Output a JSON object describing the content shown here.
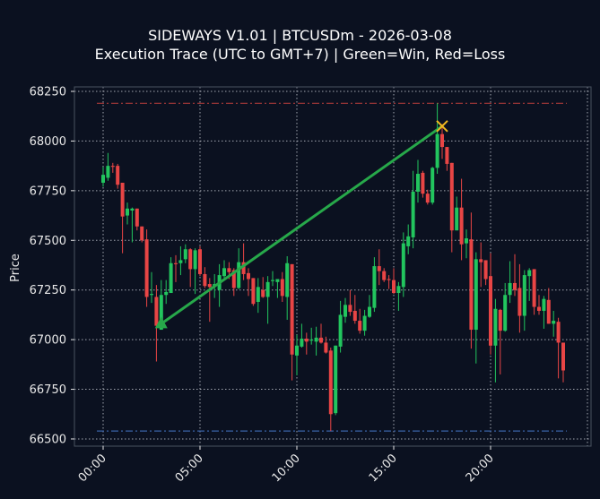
{
  "title": "SIDEWAYS V1.01 | BTCUSDm - 2026-03-08",
  "subtitle": "Execution Trace (UTC to GMT+7) | Green=Win, Red=Loss",
  "chart_data": {
    "type": "candlestick",
    "title": "SIDEWAYS V1.01 | BTCUSDm - 2026-03-08",
    "subtitle": "Execution Trace (UTC to GMT+7) | Green=Win, Red=Loss",
    "xlabel": "",
    "ylabel": "Price",
    "ylim": [
      66450,
      68270
    ],
    "yticks": [
      68250,
      68000,
      67750,
      67500,
      67250,
      67000,
      66750,
      66500
    ],
    "xticks": [
      "00:00",
      "05:00",
      "10:00",
      "15:00",
      "20:00"
    ],
    "grid": true,
    "colors": {
      "background": "#0b1120",
      "up": "#22c55e",
      "down": "#e84545",
      "trade_win": "#27a84a",
      "exit_marker": "#f0b820",
      "day_high_line": "#a83a3a",
      "day_low_line": "#3a62a8"
    },
    "day_high": 68190,
    "day_low": 66540,
    "trade": {
      "result": "win",
      "entry_time": "03:00",
      "entry_price": 67080,
      "exit_time": "17:30",
      "exit_price": 68075,
      "direction": "buy"
    },
    "columns": [
      "time",
      "open",
      "high",
      "low",
      "close"
    ],
    "candles": [
      [
        "00:00",
        67790,
        67870,
        67770,
        67830
      ],
      [
        "00:15",
        67815,
        67940,
        67800,
        67875
      ],
      [
        "00:30",
        67875,
        67890,
        67840,
        67870
      ],
      [
        "00:45",
        67875,
        67885,
        67760,
        67780
      ],
      [
        "01:00",
        67790,
        67790,
        67435,
        67620
      ],
      [
        "01:15",
        67625,
        67690,
        67580,
        67660
      ],
      [
        "01:30",
        67650,
        67665,
        67490,
        67660
      ],
      [
        "01:45",
        67660,
        67660,
        67550,
        67570
      ],
      [
        "02:00",
        67570,
        67570,
        67490,
        67500
      ],
      [
        "02:15",
        67505,
        67555,
        67165,
        67215
      ],
      [
        "02:30",
        67225,
        67340,
        67185,
        67230
      ],
      [
        "02:45",
        67215,
        67275,
        66890,
        67070
      ],
      [
        "03:00",
        67050,
        67300,
        67050,
        67225
      ],
      [
        "03:15",
        67225,
        67300,
        67180,
        67240
      ],
      [
        "03:30",
        67235,
        67415,
        67235,
        67385
      ],
      [
        "03:45",
        67385,
        67425,
        67290,
        67380
      ],
      [
        "04:00",
        67385,
        67470,
        67325,
        67400
      ],
      [
        "04:15",
        67405,
        67480,
        67385,
        67455
      ],
      [
        "04:30",
        67455,
        67460,
        67265,
        67355
      ],
      [
        "04:45",
        67355,
        67460,
        67230,
        67450
      ],
      [
        "05:00",
        67455,
        67470,
        67320,
        67330
      ],
      [
        "05:15",
        67330,
        67365,
        67260,
        67270
      ],
      [
        "05:30",
        67280,
        67310,
        67090,
        67265
      ],
      [
        "05:45",
        67270,
        67330,
        67210,
        67280
      ],
      [
        "06:00",
        67250,
        67380,
        67165,
        67325
      ],
      [
        "06:15",
        67320,
        67400,
        67310,
        67360
      ],
      [
        "06:30",
        67360,
        67390,
        67305,
        67340
      ],
      [
        "06:45",
        67350,
        67360,
        67220,
        67260
      ],
      [
        "07:00",
        67260,
        67460,
        67255,
        67390
      ],
      [
        "07:15",
        67390,
        67485,
        67300,
        67330
      ],
      [
        "07:30",
        67335,
        67360,
        67220,
        67305
      ],
      [
        "07:45",
        67310,
        67310,
        67170,
        67180
      ],
      [
        "08:00",
        67190,
        67310,
        67135,
        67265
      ],
      [
        "08:15",
        67250,
        67315,
        67210,
        67215
      ],
      [
        "08:30",
        67215,
        67320,
        67080,
        67290
      ],
      [
        "08:45",
        67295,
        67345,
        67270,
        67300
      ],
      [
        "09:00",
        67290,
        67305,
        67210,
        67305
      ],
      [
        "09:15",
        67305,
        67340,
        67190,
        67220
      ],
      [
        "09:30",
        67215,
        67420,
        67100,
        67385
      ],
      [
        "09:45",
        67380,
        67380,
        66795,
        66925
      ],
      [
        "10:00",
        66920,
        67025,
        66820,
        66970
      ],
      [
        "10:15",
        66965,
        67080,
        66960,
        67005
      ],
      [
        "10:30",
        67005,
        67035,
        66925,
        66990
      ],
      [
        "10:45",
        66995,
        67060,
        66975,
        67000
      ],
      [
        "11:00",
        66990,
        67065,
        66920,
        67010
      ],
      [
        "11:15",
        67010,
        67080,
        66980,
        66985
      ],
      [
        "11:30",
        66985,
        67015,
        66930,
        66935
      ],
      [
        "11:45",
        66945,
        66960,
        66540,
        66625
      ],
      [
        "12:00",
        66630,
        66970,
        66620,
        66970
      ],
      [
        "12:15",
        66965,
        67195,
        66935,
        67125
      ],
      [
        "12:30",
        67115,
        67210,
        67085,
        67175
      ],
      [
        "12:45",
        67175,
        67250,
        67120,
        67140
      ],
      [
        "13:00",
        67145,
        67225,
        67080,
        67095
      ],
      [
        "13:15",
        67095,
        67155,
        67030,
        67045
      ],
      [
        "13:30",
        67045,
        67150,
        67020,
        67120
      ],
      [
        "13:45",
        67115,
        67225,
        67110,
        67165
      ],
      [
        "14:00",
        67160,
        67415,
        67140,
        67370
      ],
      [
        "14:15",
        67370,
        67455,
        67275,
        67345
      ],
      [
        "14:30",
        67345,
        67360,
        67290,
        67300
      ],
      [
        "14:45",
        67305,
        67325,
        67255,
        67300
      ],
      [
        "15:00",
        67300,
        67360,
        67230,
        67235
      ],
      [
        "15:15",
        67235,
        67290,
        67145,
        67270
      ],
      [
        "15:30",
        67265,
        67540,
        67215,
        67485
      ],
      [
        "15:45",
        67470,
        67580,
        67430,
        67520
      ],
      [
        "16:00",
        67515,
        67850,
        67460,
        67745
      ],
      [
        "16:15",
        67745,
        67905,
        67690,
        67835
      ],
      [
        "16:30",
        67840,
        67850,
        67715,
        67735
      ],
      [
        "16:45",
        67735,
        67755,
        67680,
        67690
      ],
      [
        "17:00",
        67690,
        67870,
        67680,
        67865
      ],
      [
        "17:15",
        67865,
        68190,
        67835,
        68035
      ],
      [
        "17:30",
        68035,
        68085,
        67910,
        67970
      ],
      [
        "17:45",
        67970,
        67970,
        67850,
        67885
      ],
      [
        "18:00",
        67890,
        67890,
        67440,
        67550
      ],
      [
        "18:15",
        67550,
        67720,
        67550,
        67665
      ],
      [
        "18:30",
        67665,
        67810,
        67400,
        67480
      ],
      [
        "18:45",
        67485,
        67555,
        67410,
        67510
      ],
      [
        "19:00",
        67505,
        67640,
        66955,
        67050
      ],
      [
        "19:15",
        67050,
        67440,
        66880,
        67405
      ],
      [
        "19:30",
        67405,
        67490,
        67265,
        67390
      ],
      [
        "19:45",
        67400,
        67400,
        67275,
        67305
      ],
      [
        "20:00",
        67320,
        67435,
        66925,
        66970
      ],
      [
        "20:15",
        66970,
        67205,
        66785,
        67155
      ],
      [
        "20:30",
        67150,
        67155,
        66825,
        67045
      ],
      [
        "20:45",
        67045,
        67285,
        67040,
        67225
      ],
      [
        "21:00",
        67225,
        67395,
        67185,
        67285
      ],
      [
        "21:15",
        67285,
        67430,
        67220,
        67250
      ],
      [
        "21:30",
        67260,
        67380,
        67035,
        67120
      ],
      [
        "21:45",
        67120,
        67350,
        67045,
        67325
      ],
      [
        "22:00",
        67320,
        67360,
        67195,
        67350
      ],
      [
        "22:15",
        67355,
        67355,
        67125,
        67165
      ],
      [
        "22:30",
        67165,
        67225,
        67125,
        67145
      ],
      [
        "22:45",
        67145,
        67220,
        67055,
        67205
      ],
      [
        "23:00",
        67200,
        67260,
        67080,
        67080
      ],
      [
        "23:15",
        67080,
        67145,
        67015,
        67095
      ],
      [
        "23:30",
        67090,
        67110,
        66805,
        66985
      ],
      [
        "23:45",
        66985,
        66985,
        66785,
        66845
      ]
    ]
  }
}
